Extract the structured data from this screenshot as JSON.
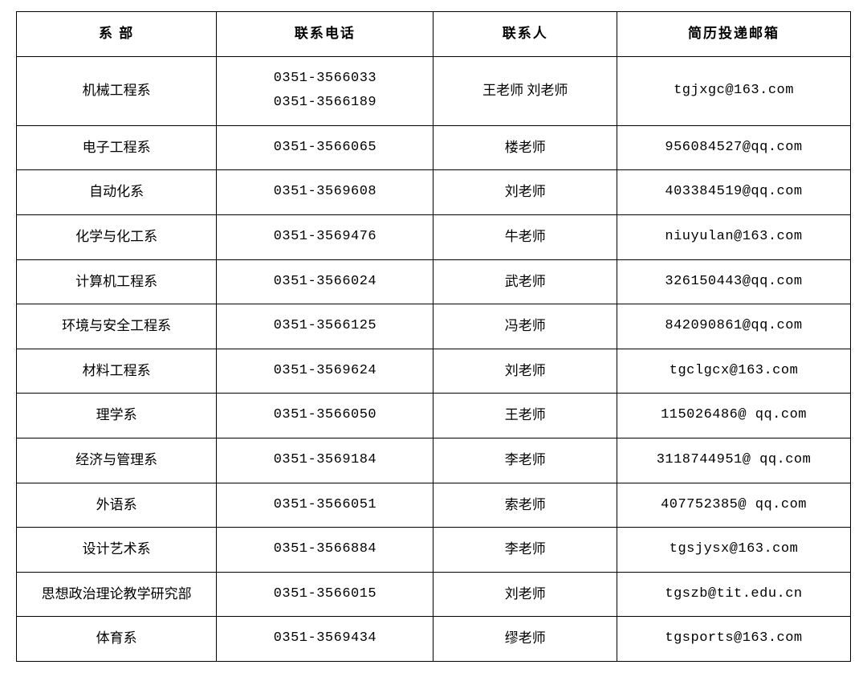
{
  "table": {
    "columns": [
      "系 部",
      "联系电话",
      "联系人",
      "简历投递邮箱"
    ],
    "rows": [
      {
        "dept": "机械工程系",
        "phone": "0351-3566033\n0351-3566189",
        "contact": "王老师 刘老师",
        "email": "tgjxgc@163.com"
      },
      {
        "dept": "电子工程系",
        "phone": "0351-3566065",
        "contact": "楼老师",
        "email": "956084527@qq.com"
      },
      {
        "dept": "自动化系",
        "phone": "0351-3569608",
        "contact": "刘老师",
        "email": "403384519@qq.com"
      },
      {
        "dept": "化学与化工系",
        "phone": "0351-3569476",
        "contact": "牛老师",
        "email": "niuyulan@163.com"
      },
      {
        "dept": "计算机工程系",
        "phone": "0351-3566024",
        "contact": "武老师",
        "email": "326150443@qq.com"
      },
      {
        "dept": "环境与安全工程系",
        "phone": "0351-3566125",
        "contact": "冯老师",
        "email": "842090861@qq.com"
      },
      {
        "dept": "材料工程系",
        "phone": "0351-3569624",
        "contact": "刘老师",
        "email": "tgclgcx@163.com"
      },
      {
        "dept": "理学系",
        "phone": "0351-3566050",
        "contact": "王老师",
        "email": "115026486@  qq.com"
      },
      {
        "dept": "经济与管理系",
        "phone": "0351-3569184",
        "contact": "李老师",
        "email": "3118744951@  qq.com"
      },
      {
        "dept": "外语系",
        "phone": "0351-3566051",
        "contact": "索老师",
        "email": "407752385@  qq.com"
      },
      {
        "dept": "设计艺术系",
        "phone": "0351-3566884",
        "contact": "李老师",
        "email": "tgsjysx@163.com"
      },
      {
        "dept": "思想政治理论教学研究部",
        "phone": "0351-3566015",
        "contact": "刘老师",
        "email": "tgszb@tit.edu.cn"
      },
      {
        "dept": "体育系",
        "phone": "0351-3569434",
        "contact": "缪老师",
        "email": "tgsports@163.com"
      }
    ],
    "font_size": 17,
    "border_color": "#000000",
    "background_color": "#ffffff",
    "text_color": "#000000"
  }
}
